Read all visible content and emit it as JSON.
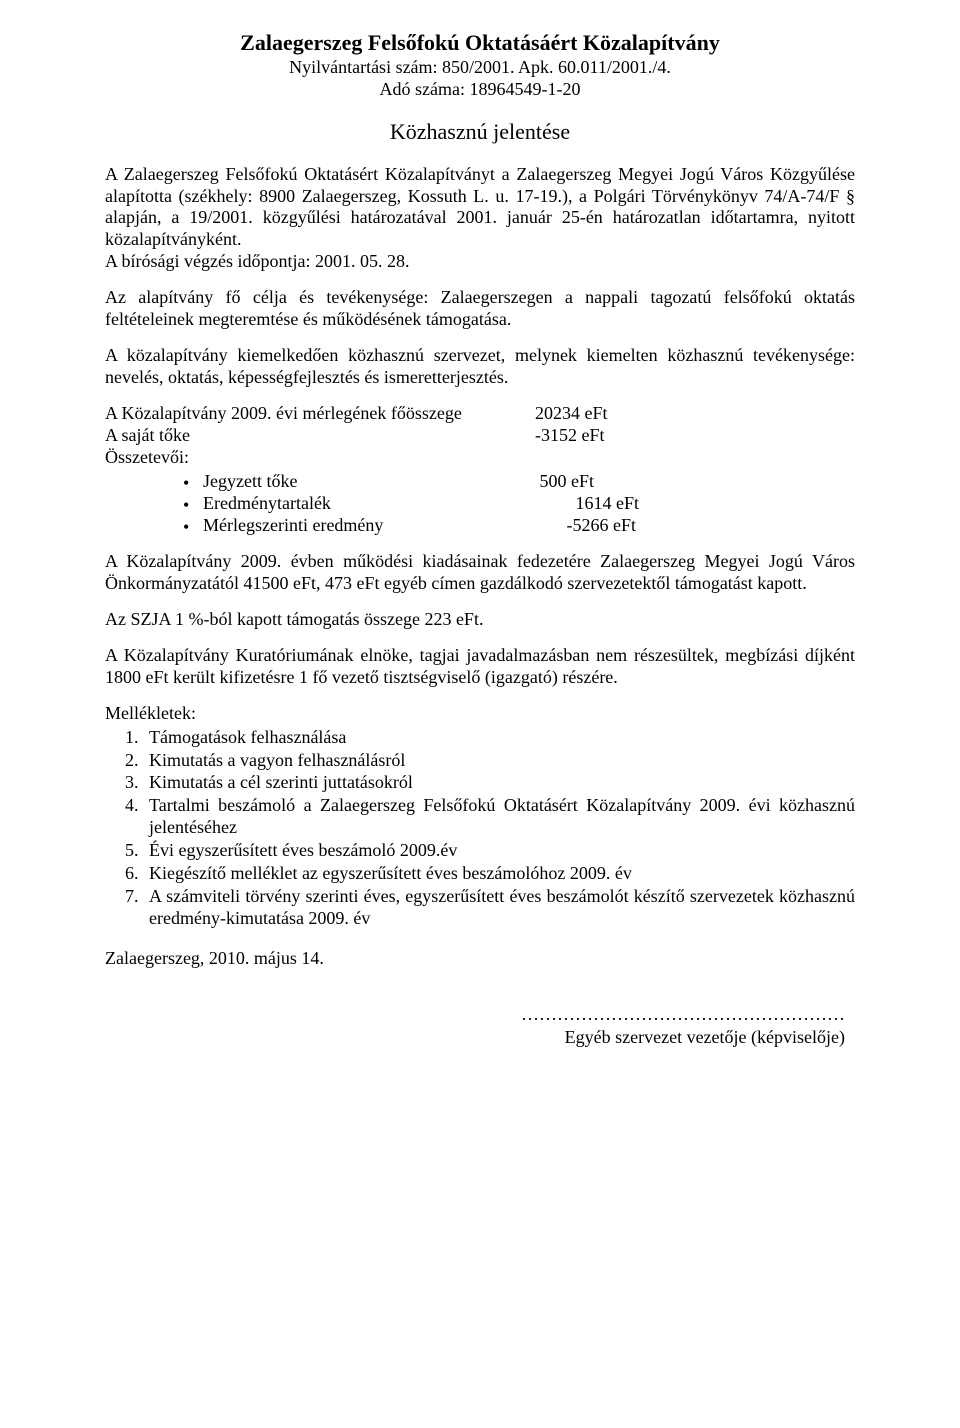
{
  "header": {
    "title": "Zalaegerszeg Felsőfokú Oktatásáért Közalapítvány",
    "registration": "Nyilvántartási szám: 850/2001. Apk. 60.011/2001./4.",
    "tax_number": "Adó száma: 18964549-1-20",
    "report_title": "Közhasznú jelentése"
  },
  "paragraphs": {
    "p1": "A Zalaegerszeg Felsőfokú Oktatásért Közalapítványt a Zalaegerszeg Megyei Jogú Város Közgyűlése alapította (székhely: 8900 Zalaegerszeg, Kossuth L. u. 17-19.), a Polgári Törvénykönyv 74/A-74/F § alapján, a 19/2001. közgyűlési határozatával 2001. január 25-én határozatlan időtartamra, nyitott közalapítványként.",
    "p1b": "A bírósági végzés időpontja: 2001. 05. 28.",
    "p2": "Az alapítvány fő célja és tevékenysége: Zalaegerszegen a nappali tagozatú felsőfokú oktatás feltételeinek megteremtése és működésének támogatása.",
    "p3": "A közalapítvány kiemelkedően közhasznú szervezet, melynek kiemelten közhasznú tevékenysége: nevelés, oktatás, képességfejlesztés és ismeretterjesztés.",
    "p4": "A Közalapítvány 2009. évben működési kiadásainak fedezetére Zalaegerszeg Megyei Jogú Város Önkormányzatától 41500 eFt, 473 eFt egyéb címen  gazdálkodó szervezetektől támogatást kapott.",
    "p5": "Az SZJA 1 %-ból kapott támogatás összege 223 eFt.",
    "p6": "A Közalapítvány Kuratóriumának elnöke, tagjai javadalmazásban nem részesültek, megbízási díjként 1800 eFt került kifizetésre 1 fő vezető tisztségviselő (igazgató) részére."
  },
  "financial": {
    "balance_label": "A Közalapítvány 2009. évi mérlegének főösszege",
    "balance_value": "20234 eFt",
    "equity_label": "A saját tőke",
    "equity_value": "-3152 eFt",
    "components_label": "Összetevői:",
    "items": [
      {
        "label": "Jegyzett tőke",
        "value": " 500 eFt"
      },
      {
        "label": "Eredménytartalék",
        "value": "         1614 eFt"
      },
      {
        "label": "Mérlegszerinti eredmény",
        "value": "       -5266 eFt"
      }
    ]
  },
  "attachments": {
    "heading": "Mellékletek:",
    "items": [
      "Támogatások felhasználása",
      "Kimutatás a vagyon felhasználásról",
      "Kimutatás a cél szerinti juttatásokról",
      "Tartalmi beszámoló a Zalaegerszeg Felsőfokú Oktatásért Közalapítvány 2009. évi közhasznú jelentéséhez",
      "Évi egyszerűsített éves beszámoló 2009.év",
      "Kiegészítő melléklet az egyszerűsített éves beszámolóhoz 2009. év",
      "A számviteli törvény szerinti éves, egyszerűsített éves beszámolót készítő szervezetek közhasznú eredmény-kimutatása 2009. év"
    ]
  },
  "footer": {
    "date": "Zalaegerszeg, 2010. május 14.",
    "sign_dots": "………………………………………………",
    "sign_label": "Egyéb szervezet vezetője (képviselője)"
  }
}
